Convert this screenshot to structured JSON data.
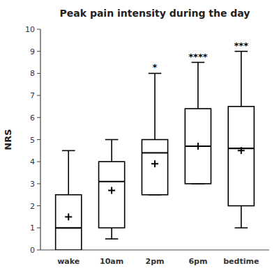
{
  "chart_data": {
    "type": "box",
    "title": "Peak pain intensity during the day",
    "ylabel": "NRS",
    "categories": [
      "wake",
      "10am",
      "2pm",
      "6pm",
      "bedtime"
    ],
    "boxes": [
      {
        "whislo": 0.0,
        "q1": 0.0,
        "med": 1.0,
        "q3": 2.5,
        "whishi": 4.5,
        "mean": 1.5
      },
      {
        "whislo": 0.5,
        "q1": 1.0,
        "med": 3.1,
        "q3": 4.0,
        "whishi": 5.0,
        "mean": 2.7
      },
      {
        "whislo": 2.5,
        "q1": 2.5,
        "med": 4.4,
        "q3": 5.0,
        "whishi": 8.0,
        "mean": 3.9
      },
      {
        "whislo": 3.0,
        "q1": 3.0,
        "med": 4.7,
        "q3": 6.4,
        "whishi": 8.5,
        "mean": 4.7
      },
      {
        "whislo": 1.0,
        "q1": 2.0,
        "med": 4.6,
        "q3": 6.5,
        "whishi": 9.0,
        "mean": 4.5
      }
    ],
    "annotations": [
      {
        "category": "2pm",
        "text": "*"
      },
      {
        "category": "6pm",
        "text": "****"
      },
      {
        "category": "bedtime",
        "text": "***"
      }
    ],
    "color": "#000000",
    "ylim": [
      0,
      10
    ],
    "yticks": [
      0,
      1,
      2,
      3,
      4,
      5,
      6,
      7,
      8,
      9,
      10
    ],
    "grid": false
  }
}
